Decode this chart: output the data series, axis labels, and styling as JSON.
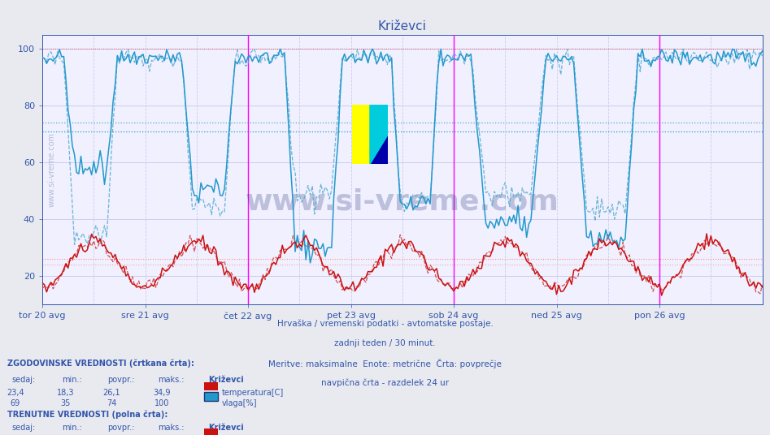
{
  "title": "Križevci",
  "bg_color": "#e8eaf0",
  "plot_bg_color": "#f0f0ff",
  "fig_width": 9.47,
  "fig_height": 5.36,
  "ylim": [
    10,
    105
  ],
  "yticks": [
    20,
    40,
    60,
    80,
    100
  ],
  "xlim": [
    0,
    336
  ],
  "n_points": 337,
  "day_labels": [
    "tor 20 avg",
    "sre 21 avg",
    "čet 22 avg",
    "pet 23 avg",
    "sob 24 avg",
    "ned 25 avg",
    "pon 26 avg"
  ],
  "day_ticks": [
    0,
    48,
    96,
    144,
    192,
    240,
    288
  ],
  "text_color": "#3355aa",
  "grid_color": "#ccccee",
  "magenta_lines": [
    96,
    192,
    288
  ],
  "subtitle_lines": [
    "Hrvaška / vremenski podatki - avtomatske postaje.",
    "zadnji teden / 30 minut.",
    "Meritve: maksimalne  Enote: metrične  Črta: povprečje",
    "navpična črta - razdelek 24 ur"
  ],
  "watermark": "www.si-vreme.com",
  "humidity_dashed_avg": 74,
  "humidity_solid_avg": 71,
  "temp_dashed_avg": 26.1,
  "temp_solid_avg": 24.0,
  "humidity_color": "#2299cc",
  "temp_color": "#cc1111",
  "temp_dashed_color": "#cc3333",
  "humidity_dashed_color": "#55aacc",
  "red_dotted_color": "#ff8888",
  "blue_dotted_color": "#99bbdd",
  "station_name": "Križevci"
}
